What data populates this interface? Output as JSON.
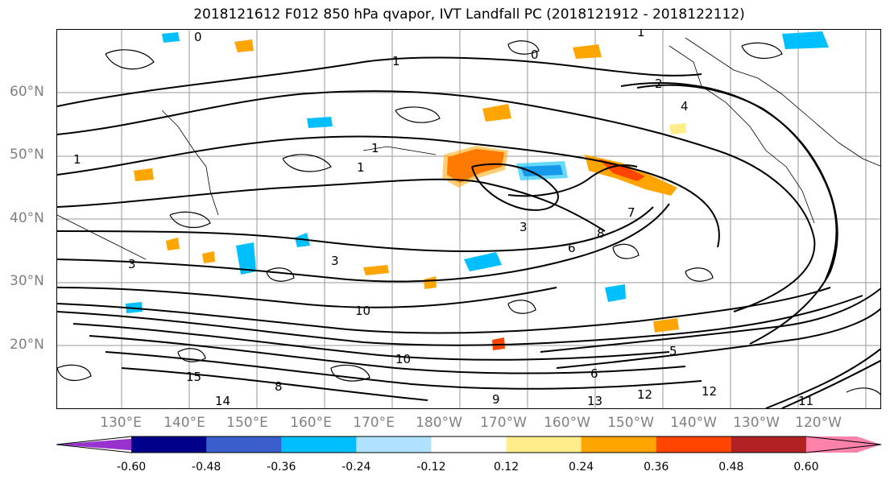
{
  "title": "2018121612 F012 850 hPa qvapor, IVT Landfall PC (2018121912 - 2018122112)",
  "lat_labels": [
    "60°N",
    "50°N",
    "40°N",
    "30°N",
    "20°N"
  ],
  "lon_labels": [
    "130°E",
    "140°E",
    "150°E",
    "160°E",
    "170°E",
    "180°W",
    "170°W",
    "160°W",
    "150°W",
    "140°W",
    "130°W",
    "120°W"
  ],
  "colorbar": {
    "colors": [
      "#9932cc",
      "#00008b",
      "#3a5fcd",
      "#00bfff",
      "#b0e2ff",
      "#ffffff",
      "#ffec8b",
      "#ffa500",
      "#ff4500",
      "#b22222",
      "#ff82ab"
    ],
    "tick_labels": [
      "-0.60",
      "-0.48",
      "-0.36",
      "-0.24",
      "-0.12",
      "0.12",
      "0.24",
      "0.36",
      "0.48",
      "0.60"
    ]
  },
  "contour_labels": [
    "0",
    "0",
    "1",
    "1",
    "2",
    "4",
    "1",
    "1",
    "1",
    "3",
    "3",
    "7",
    "8",
    "6",
    "3",
    "10",
    "10",
    "15",
    "14",
    "13",
    "12",
    "12",
    "11",
    "9",
    "8",
    "6",
    "5"
  ]
}
